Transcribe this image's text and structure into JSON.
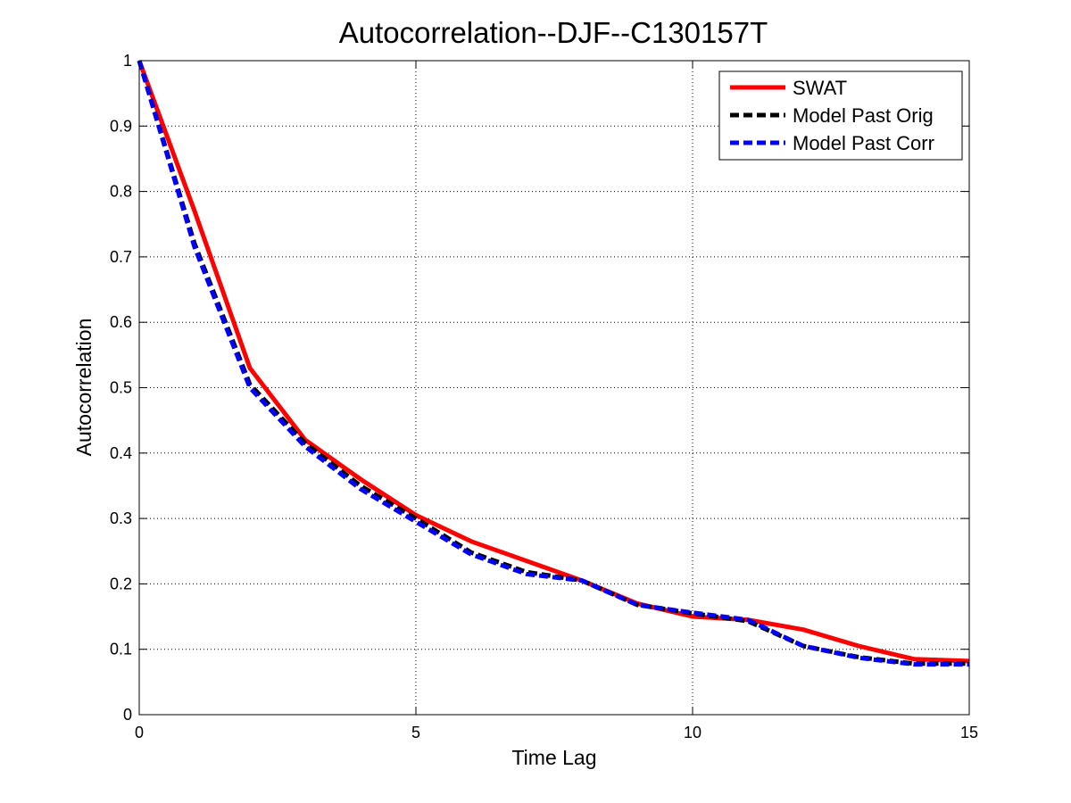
{
  "chart_data": {
    "type": "line",
    "title": "Autocorrelation--DJF--C130157T",
    "xlabel": "Time Lag",
    "ylabel": "Autocorrelation",
    "xlim": [
      0,
      15
    ],
    "ylim": [
      0,
      1
    ],
    "xticks": [
      0,
      5,
      10,
      15
    ],
    "yticks": [
      0,
      0.1,
      0.2,
      0.3,
      0.4,
      0.5,
      0.6,
      0.7,
      0.8,
      0.9,
      1
    ],
    "grid": true,
    "legend_position": "top-right",
    "series": [
      {
        "name": "SWAT",
        "color": "#ff0000",
        "style": "solid",
        "x": [
          0,
          1,
          2,
          3,
          4,
          5,
          6,
          7,
          8,
          9,
          10,
          11,
          12,
          13,
          14,
          15
        ],
        "y": [
          1.0,
          0.77,
          0.53,
          0.42,
          0.36,
          0.305,
          0.265,
          0.235,
          0.205,
          0.17,
          0.15,
          0.145,
          0.13,
          0.105,
          0.085,
          0.082
        ]
      },
      {
        "name": "Model Past Orig",
        "color": "#000000",
        "style": "dashed",
        "x": [
          0,
          1,
          2,
          3,
          4,
          5,
          6,
          7,
          8,
          9,
          10,
          11,
          12,
          13,
          14,
          15
        ],
        "y": [
          1.0,
          0.72,
          0.505,
          0.415,
          0.35,
          0.3,
          0.248,
          0.218,
          0.205,
          0.168,
          0.155,
          0.143,
          0.105,
          0.088,
          0.078,
          0.078
        ]
      },
      {
        "name": "Model Past Corr",
        "color": "#0000ff",
        "style": "dashed",
        "x": [
          0,
          1,
          2,
          3,
          4,
          5,
          6,
          7,
          8,
          9,
          10,
          11,
          12,
          13,
          14,
          15
        ],
        "y": [
          1.0,
          0.715,
          0.5,
          0.41,
          0.345,
          0.295,
          0.245,
          0.215,
          0.205,
          0.168,
          0.156,
          0.145,
          0.105,
          0.087,
          0.077,
          0.077
        ]
      }
    ]
  }
}
